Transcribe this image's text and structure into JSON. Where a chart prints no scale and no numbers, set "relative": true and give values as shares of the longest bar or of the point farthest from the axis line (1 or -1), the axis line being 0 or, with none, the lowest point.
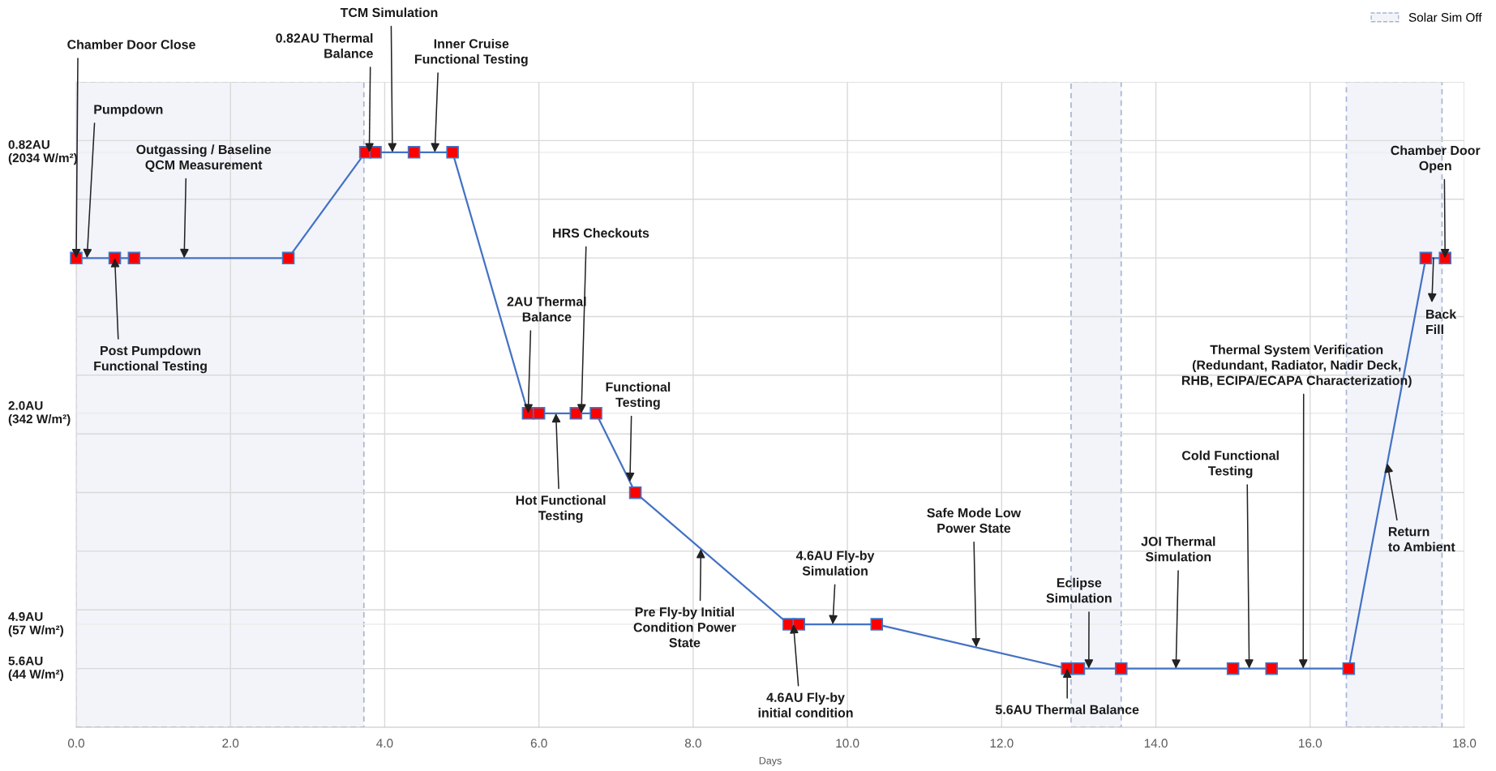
{
  "chart_data": {
    "type": "line",
    "xlabel": "Days",
    "relative": true,
    "x": [
      0,
      0.5,
      0.75,
      2.75,
      3.75,
      3.88,
      4.38,
      4.88,
      5.86,
      6.0,
      6.48,
      6.74,
      7.25,
      9.24,
      9.37,
      10.38,
      12.85,
      13.0,
      13.55,
      15.0,
      15.5,
      16.5,
      17.5,
      17.75
    ],
    "series": [
      {
        "color": "#4472c4",
        "colors": [
          "#ff0000",
          "#ff0000",
          "#ff0000",
          "#ff0000",
          "#ff0000",
          "#ff0000",
          "#ff0000",
          "#ff0000",
          "#ff0000",
          "#ff0000",
          "#ff0000",
          "#ff0000",
          "#ff0000",
          "#ff0000",
          "#ff0000",
          "#ff0000",
          "#ff0000",
          "#ff0000",
          "#ff0000",
          "#ff0000",
          "#ff0000",
          "#ff0000",
          "#ff0000",
          "#ff0000"
        ],
        "values": [
          0.816,
          0.816,
          0.816,
          0.816,
          1,
          1,
          1,
          1,
          0.546,
          0.546,
          0.546,
          0.546,
          0.408,
          0.179,
          0.179,
          0.179,
          0.102,
          0.102,
          0.102,
          0.102,
          0.102,
          0.102,
          0.816,
          0.816
        ]
      }
    ],
    "marker": "square",
    "line_style": "solid",
    "xlim": [
      0,
      18
    ],
    "xticks": [
      {
        "value": 0,
        "label": "0.0"
      },
      {
        "value": 2,
        "label": "2.0"
      },
      {
        "value": 4,
        "label": "4.0"
      },
      {
        "value": 6,
        "label": "6.0"
      },
      {
        "value": 8,
        "label": "8.0"
      },
      {
        "value": 10,
        "label": "10.0"
      },
      {
        "value": 12,
        "label": "12.0"
      },
      {
        "value": 14,
        "label": "14.0"
      },
      {
        "value": 16,
        "label": "16.0"
      },
      {
        "value": 18,
        "label": "18.0"
      }
    ],
    "ref_lines": [
      {
        "axis": "y",
        "value": 1,
        "label": "0.82AU\n(2034 W/m²)",
        "color": "#ececec"
      },
      {
        "axis": "y",
        "value": 0.546,
        "label": "2.0AU\n(342 W/m²)",
        "color": "#ececec"
      },
      {
        "axis": "y",
        "value": 0.179,
        "label": "4.9AU\n(57 W/m²)",
        "color": "#ececec"
      },
      {
        "axis": "y",
        "value": 0.102,
        "label": "5.6AU\n(44 W/m²)",
        "color": "#ececec"
      }
    ],
    "grid": true,
    "legend": "top right",
    "bands": [
      {
        "axis": "x",
        "from": 0,
        "to": 3.73,
        "label": "Solar Sim Off",
        "color": "#f2f4fa"
      },
      {
        "axis": "x",
        "from": 12.9,
        "to": 13.55,
        "color": "#f2f4fa"
      },
      {
        "axis": "x",
        "from": 16.47,
        "to": 17.71,
        "color": "#f2f4fa"
      }
    ],
    "annotations": [
      {
        "text": "Chamber Door Close",
        "x": 0,
        "y": 0.816
      },
      {
        "text": "Pumpdown",
        "x": 0.14,
        "y": 0.816
      },
      {
        "text": "Outgassing / Baseline\nQCM Measurement",
        "x": 1.4,
        "y": 0.816
      },
      {
        "text": "Post Pumpdown\nFunctional Testing",
        "x": 0.5,
        "y": 0.816
      },
      {
        "text": "0.82AU Thermal\nBalance",
        "x": 3.8,
        "y": 1
      },
      {
        "text": "TCM Simulation",
        "x": 4.1,
        "y": 1
      },
      {
        "text": "Inner Cruise\nFunctional Testing",
        "x": 4.65,
        "y": 1
      },
      {
        "text": "HRS Checkouts",
        "x": 6.55,
        "y": 0.546
      },
      {
        "text": "2AU Thermal\nBalance",
        "x": 5.86,
        "y": 0.546
      },
      {
        "text": "Functional\nTesting",
        "x": 7.18,
        "y": 0.427
      },
      {
        "text": "Hot Functional\nTesting",
        "x": 6.22,
        "y": 0.546
      },
      {
        "text": "Pre Fly-by Initial\nCondition Power\nState",
        "x": 8.1,
        "y": 0.31
      },
      {
        "text": "4.6AU Fly-by\nSimulation",
        "x": 9.81,
        "y": 0.179
      },
      {
        "text": "4.6AU Fly-by\ninitial condition",
        "x": 9.3,
        "y": 0.179
      },
      {
        "text": "Safe Mode Low\nPower State",
        "x": 11.67,
        "y": 0.139
      },
      {
        "text": "Eclipse\nSimulation",
        "x": 13.13,
        "y": 0.102
      },
      {
        "text": "5.6AU Thermal Balance",
        "x": 12.85,
        "y": 0.102
      },
      {
        "text": "JOI Thermal\nSimulation",
        "x": 14.26,
        "y": 0.102
      },
      {
        "text": "Cold Functional\nTesting",
        "x": 15.21,
        "y": 0.102
      },
      {
        "text": "Thermal System Verification\n(Redundant, Radiator, Nadir Deck,\nRHB, ECIPA/ECAPA Characterization)",
        "x": 15.91,
        "y": 0.102
      },
      {
        "text": "Return\nto Ambient",
        "x": 17.0,
        "y": 0.459
      },
      {
        "text": "Chamber Door\nOpen",
        "x": 17.75,
        "y": 0.816
      },
      {
        "text": "Back\nFill",
        "x": 17.6,
        "y": 0.816
      }
    ]
  }
}
